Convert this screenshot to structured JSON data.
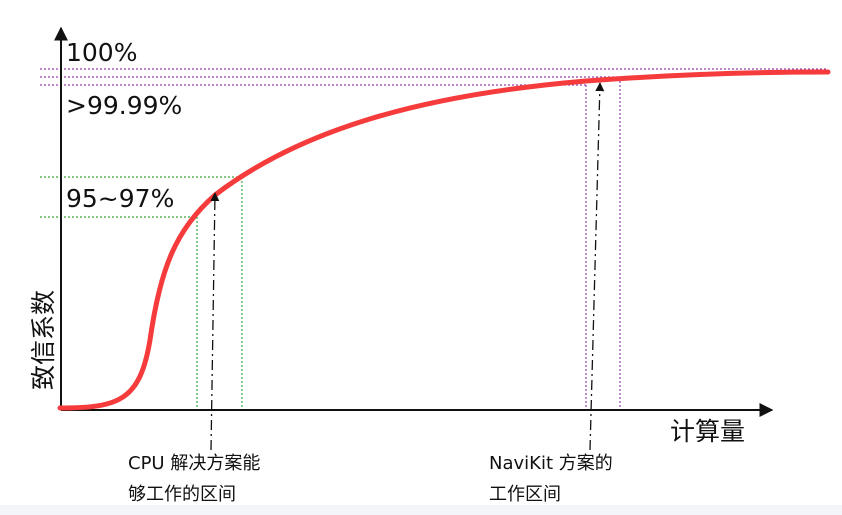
{
  "diagram": {
    "y_axis_label": "致信系数",
    "x_axis_label": "计算量",
    "levels": {
      "top": "100%",
      "high": ">99.99%",
      "mid": "95~97%"
    },
    "annotations": {
      "cpu_line1": "CPU 解决方案能",
      "cpu_line2": "够工作的区间",
      "navikit_line1": "NaviKit 方案的",
      "navikit_line2": "工作区间"
    },
    "colors": {
      "curve": "#f53b3b",
      "axis": "#111111",
      "cpu_guides": "#3aa83a",
      "navikit_guides": "#9b3fb0"
    }
  }
}
